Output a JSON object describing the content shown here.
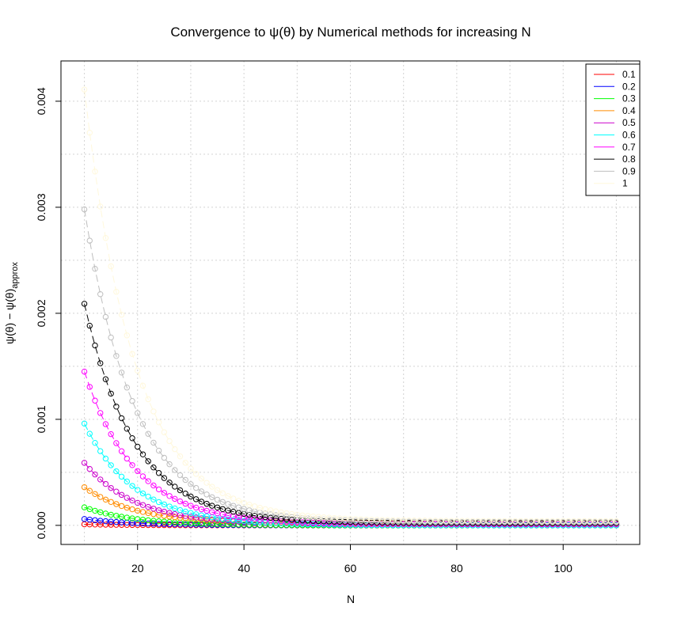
{
  "chart_data": {
    "type": "scatter",
    "title": "Convergence to ψ(θ) by Numerical methods for increasing N",
    "xlabel": "N",
    "ylabel": "ψ(θ) − ψ(θ)",
    "ylabel_subscript": "approx",
    "x_range": [
      10,
      110
    ],
    "xlim": [
      5.6,
      114.4
    ],
    "ylim": [
      -0.00018,
      0.00438
    ],
    "x_ticks": [
      "20",
      "40",
      "60",
      "80",
      "100"
    ],
    "y_ticks": [
      "0.000",
      "0.001",
      "0.002",
      "0.003",
      "0.004"
    ],
    "grid": true,
    "legend_position": "top-right",
    "marker": "open-circle",
    "decay_factor": 0.9,
    "series": [
      {
        "name": "0.1",
        "color": "#FF0000",
        "start": 1e-05,
        "floor": 0.0
      },
      {
        "name": "0.2",
        "color": "#0000FF",
        "start": 6e-05,
        "floor": 0.0
      },
      {
        "name": "0.3",
        "color": "#00FF00",
        "start": 0.00017,
        "floor": 0.0
      },
      {
        "name": "0.4",
        "color": "#FF8C00",
        "start": 0.00036,
        "floor": 2e-05
      },
      {
        "name": "0.5",
        "color": "#CC00CC",
        "start": 0.00059,
        "floor": 1e-05
      },
      {
        "name": "0.6",
        "color": "#00FFFF",
        "start": 0.00096,
        "floor": 0.0
      },
      {
        "name": "0.7",
        "color": "#FF00FF",
        "start": 0.00145,
        "floor": 1e-05
      },
      {
        "name": "0.8",
        "color": "#000000",
        "start": 0.00209,
        "floor": 2e-05
      },
      {
        "name": "0.9",
        "color": "#BEBEBE",
        "start": 0.00298,
        "floor": 3e-05
      },
      {
        "name": "1",
        "color": "#FFF8DC",
        "start": 0.00411,
        "floor": 4e-05
      }
    ]
  }
}
